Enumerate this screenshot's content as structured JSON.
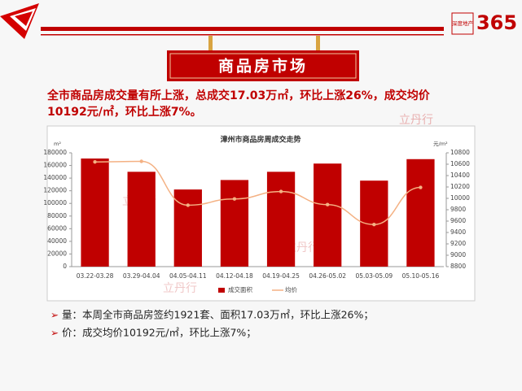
{
  "header": {
    "logo_top": "深度地产",
    "logo_number": "365",
    "banner": "商品房市场"
  },
  "headline": [
    "全市商品房成交量有所上涨，总成交17.03万㎡，环比上涨26%，成交均价",
    "10192元/㎡，环比上涨7%。"
  ],
  "watermark": "立丹行",
  "bullets": [
    "量：本周全市商品房签约1921套、面积17.03万㎡，环比上涨26%；",
    "价：成交均价10192元/㎡，环比上涨7%；"
  ],
  "chart_data": {
    "type": "bar",
    "title": "漳州市商品房周成交走势",
    "ylabel": "m²",
    "y2label": "元/m²",
    "categories": [
      "03.22-03.28",
      "03.29-04.04",
      "04.05-04.11",
      "04.12-04.18",
      "04.19-04.25",
      "04.26-05.02",
      "05.03-05.09",
      "05.10-05.16"
    ],
    "series": [
      {
        "name": "成交面积",
        "type": "bar",
        "color": "#c00000",
        "values": [
          171000,
          150000,
          122000,
          137000,
          150000,
          163000,
          136000,
          170000
        ]
      },
      {
        "name": "均价",
        "type": "line",
        "axis": "y2",
        "color": "#f4b183",
        "values": [
          10640,
          10650,
          9880,
          9990,
          10120,
          9890,
          9540,
          10192
        ]
      }
    ],
    "ylim": [
      0,
      180000
    ],
    "yticks": [
      0,
      20000,
      40000,
      60000,
      80000,
      100000,
      120000,
      140000,
      160000,
      180000
    ],
    "y2lim": [
      8800,
      10800
    ],
    "y2ticks": [
      8800,
      9000,
      9200,
      9400,
      9600,
      9800,
      10000,
      10200,
      10400,
      10600,
      10800
    ],
    "legend": "bottom"
  }
}
